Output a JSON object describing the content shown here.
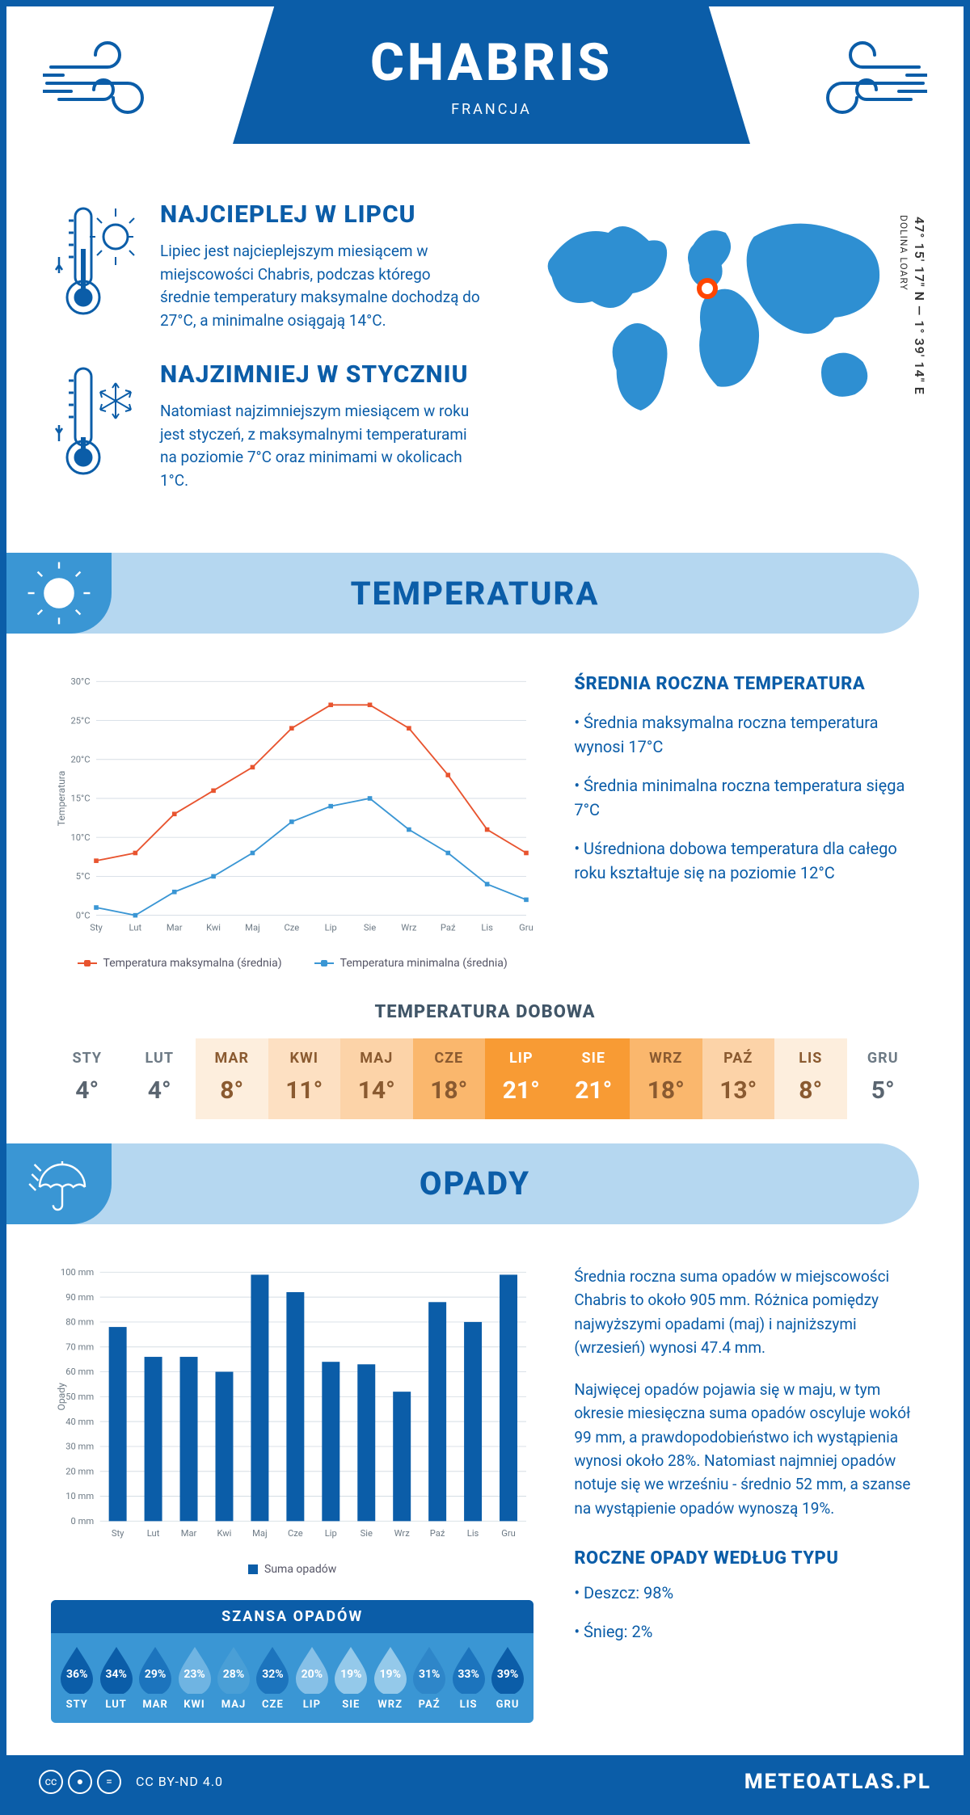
{
  "header": {
    "city": "CHABRIS",
    "country": "FRANCJA"
  },
  "location": {
    "coords": "47° 15' 17\" N — 1° 39' 14\" E",
    "region": "DOLINA LOARY",
    "marker_color": "#ff4500",
    "map_color": "#2e8fd2"
  },
  "colors": {
    "primary": "#0b5da8",
    "light": "#b5d7f0",
    "accent": "#3a96d4",
    "grid": "#d5dde4",
    "axis_text": "#6d7a85",
    "series_max": "#e8542f",
    "series_min": "#3a96d4"
  },
  "intro": {
    "warm": {
      "title": "NAJCIEPLEJ W LIPCU",
      "text": "Lipiec jest najcieplejszym miesiącem w miejscowości Chabris, podczas którego średnie temperatury maksymalne dochodzą do 27°C, a minimalne osiągają 14°C."
    },
    "cold": {
      "title": "NAJZIMNIEJ W STYCZNIU",
      "text": "Natomiast najzimniejszym miesiącem w roku jest styczeń, z maksymalnymi temperaturami na poziomie 7°C oraz minimami w okolicach 1°C."
    }
  },
  "temp_section": {
    "title": "TEMPERATURA",
    "side_title": "ŚREDNIA ROCZNA TEMPERATURA",
    "bullets": [
      "• Średnia maksymalna roczna temperatura wynosi 17°C",
      "• Średnia minimalna roczna temperatura sięga 7°C",
      "• Uśredniona dobowa temperatura dla całego roku kształtuje się na poziomie 12°C"
    ]
  },
  "temp_chart": {
    "type": "line",
    "months": [
      "Sty",
      "Lut",
      "Mar",
      "Kwi",
      "Maj",
      "Cze",
      "Lip",
      "Sie",
      "Wrz",
      "Paź",
      "Lis",
      "Gru"
    ],
    "series_max": {
      "label": "Temperatura maksymalna (średnia)",
      "color": "#e8542f",
      "values": [
        7,
        8,
        13,
        16,
        19,
        24,
        27,
        27,
        24,
        18,
        11,
        8
      ]
    },
    "series_min": {
      "label": "Temperatura minimalna (średnia)",
      "color": "#3a96d4",
      "values": [
        1,
        0,
        3,
        5,
        8,
        12,
        14,
        15,
        11,
        8,
        4,
        2
      ]
    },
    "ylabel": "Temperatura",
    "ylim": [
      0,
      30
    ],
    "ytick_step": 5,
    "y_suffix": "°C",
    "line_width": 2,
    "marker_size": 4,
    "background": "#ffffff",
    "grid_color": "#d5dde4",
    "label_fontsize": 12
  },
  "daily": {
    "title": "TEMPERATURA DOBOWA",
    "months": [
      "STY",
      "LUT",
      "MAR",
      "KWI",
      "MAJ",
      "CZE",
      "LIP",
      "SIE",
      "WRZ",
      "PAŹ",
      "LIS",
      "GRU"
    ],
    "values": [
      "4°",
      "4°",
      "8°",
      "11°",
      "14°",
      "18°",
      "21°",
      "21°",
      "18°",
      "13°",
      "8°",
      "5°"
    ],
    "cell_colors": [
      "#ffffff",
      "#ffffff",
      "#fdeedd",
      "#fde0c2",
      "#fcd3a8",
      "#fab76d",
      "#f89b34",
      "#f89b34",
      "#fab76d",
      "#fcd3a8",
      "#fdeedd",
      "#ffffff"
    ]
  },
  "precip_section": {
    "title": "OPADY"
  },
  "precip_chart": {
    "type": "bar",
    "months": [
      "Sty",
      "Lut",
      "Mar",
      "Kwi",
      "Maj",
      "Cze",
      "Lip",
      "Sie",
      "Wrz",
      "Paź",
      "Lis",
      "Gru"
    ],
    "values": [
      78,
      66,
      66,
      60,
      99,
      92,
      64,
      63,
      52,
      88,
      80,
      99
    ],
    "bar_color": "#0b5da8",
    "ylabel": "Opady",
    "ylim": [
      0,
      100
    ],
    "ytick_step": 10,
    "y_suffix": " mm",
    "bar_width": 0.5,
    "grid_color": "#d5dde4",
    "legend_label": "Suma opadów",
    "label_fontsize": 12
  },
  "precip_text": {
    "p1": "Średnia roczna suma opadów w miejscowości Chabris to około 905 mm. Różnica pomiędzy najwyższymi opadami (maj) i najniższymi (wrzesień) wynosi 47.4 mm.",
    "p2": "Najwięcej opadów pojawia się w maju, w tym okresie miesięczna suma opadów oscyluje wokół 99 mm, a prawdopodobieństwo ich wystąpienia wynosi około 28%. Natomiast najmniej opadów notuje się we wrześniu - średnio 52 mm, a szanse na wystąpienie opadów wynoszą 19%."
  },
  "chance": {
    "title": "SZANSA OPADÓW",
    "months": [
      "STY",
      "LUT",
      "MAR",
      "KWI",
      "MAJ",
      "CZE",
      "LIP",
      "SIE",
      "WRZ",
      "PAŹ",
      "LIS",
      "GRU"
    ],
    "values": [
      36,
      34,
      29,
      23,
      28,
      32,
      20,
      19,
      19,
      31,
      33,
      39
    ],
    "drop_colors": [
      "#0b5da8",
      "#0b5da8",
      "#1c74bd",
      "#6fb4e2",
      "#4a9fd6",
      "#1c74bd",
      "#86c0e7",
      "#94c9ea",
      "#94c9ea",
      "#2e86c9",
      "#1c74bd",
      "#0b5da8"
    ],
    "box_bg": "#3a96d4",
    "title_bg": "#0b5da8"
  },
  "precip_type": {
    "title": "ROCZNE OPADY WEDŁUG TYPU",
    "items": [
      "• Deszcz: 98%",
      "• Śnieg: 2%"
    ]
  },
  "footer": {
    "license": "CC BY-ND 4.0",
    "brand": "METEOATLAS.PL"
  }
}
